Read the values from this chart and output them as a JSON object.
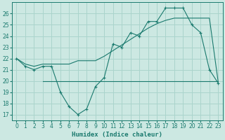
{
  "xlabel": "Humidex (Indice chaleur)",
  "ylabel": "",
  "bg_color": "#cce8e2",
  "grid_color": "#aad4cc",
  "line_color": "#1a7a6e",
  "xlim": [
    -0.5,
    23.5
  ],
  "ylim": [
    16.5,
    27.0
  ],
  "xticks": [
    0,
    1,
    2,
    3,
    4,
    5,
    6,
    7,
    8,
    9,
    10,
    11,
    12,
    13,
    14,
    15,
    16,
    17,
    18,
    19,
    20,
    21,
    22,
    23
  ],
  "yticks": [
    17,
    18,
    19,
    20,
    21,
    22,
    23,
    24,
    25,
    26
  ],
  "series1_x": [
    0,
    1,
    2,
    3,
    4,
    5,
    6,
    7,
    8,
    9,
    10,
    11,
    12,
    13,
    14,
    15,
    16,
    17,
    18,
    19,
    20,
    21,
    22,
    23
  ],
  "series1_y": [
    22.0,
    21.3,
    21.0,
    21.3,
    21.3,
    19.0,
    17.7,
    17.0,
    17.5,
    19.5,
    20.3,
    23.3,
    23.0,
    24.3,
    24.0,
    25.3,
    25.3,
    26.5,
    26.5,
    26.5,
    25.0,
    24.3,
    21.0,
    19.8
  ],
  "series2_x": [
    0,
    1,
    2,
    3,
    4,
    5,
    6,
    7,
    8,
    9,
    10,
    11,
    12,
    13,
    14,
    15,
    16,
    17,
    18,
    19,
    20,
    21,
    22,
    23
  ],
  "series2_y": [
    22.0,
    21.5,
    21.3,
    21.5,
    21.5,
    21.5,
    21.5,
    21.8,
    21.8,
    21.8,
    22.2,
    22.7,
    23.2,
    23.7,
    24.2,
    24.7,
    25.1,
    25.4,
    25.6,
    25.6,
    25.6,
    25.6,
    25.6,
    19.9
  ],
  "series3_x": [
    3,
    23
  ],
  "series3_y": [
    20.0,
    20.0
  ]
}
